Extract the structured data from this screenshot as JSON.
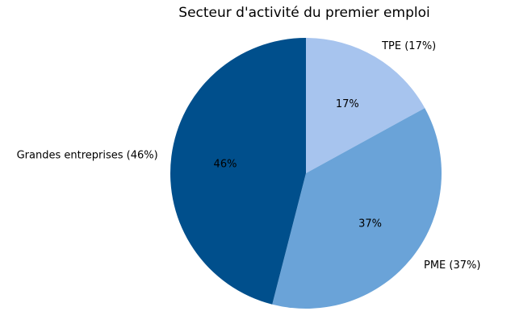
{
  "chart_data": {
    "type": "pie",
    "title": "Secteur d'activité du premier emploi",
    "start_angle_deg": 90,
    "direction": "clockwise",
    "legend": "none",
    "background_color": "#ffffff",
    "text_color": "#000000",
    "slices": [
      {
        "label": "TPE",
        "value": 17,
        "outer_label": "TPE (17%)",
        "pct_label": "17%",
        "color": "#a7c4ee"
      },
      {
        "label": "PME",
        "value": 37,
        "outer_label": "PME (37%)",
        "pct_label": "37%",
        "color": "#6aa3d8"
      },
      {
        "label": "Grandes entreprises",
        "value": 46,
        "outer_label": "Grandes entreprises (46%)",
        "pct_label": "46%",
        "color": "#004f8c"
      }
    ]
  }
}
